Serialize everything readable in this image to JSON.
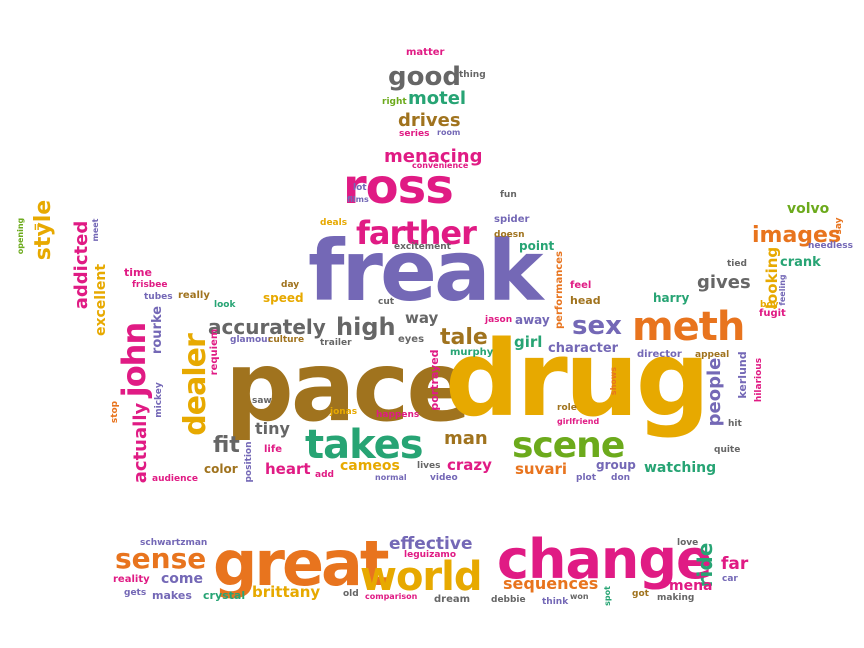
{
  "colors": {
    "pink": "#e01b84",
    "orange": "#e8741e",
    "gold": "#e7a900",
    "brown": "#a0731e",
    "violet": "#7468b6",
    "green": "#27a474",
    "lime": "#6caa1c",
    "gray": "#666666"
  },
  "words": [
    {
      "text": "pace",
      "color": "brown"
    },
    {
      "text": "drug",
      "color": "gold"
    },
    {
      "text": "freak",
      "color": "violet"
    },
    {
      "text": "great",
      "color": "orange"
    },
    {
      "text": "change",
      "color": "pink"
    },
    {
      "text": "world",
      "color": "gold"
    },
    {
      "text": "ross",
      "color": "pink"
    },
    {
      "text": "takes",
      "color": "green"
    },
    {
      "text": "meth",
      "color": "orange"
    },
    {
      "text": "scene",
      "color": "lime"
    },
    {
      "text": "dealer",
      "color": "gold"
    },
    {
      "text": "farther",
      "color": "pink"
    },
    {
      "text": "john",
      "color": "pink"
    },
    {
      "text": "sense",
      "color": "orange"
    },
    {
      "text": "good",
      "color": "gray"
    },
    {
      "text": "high",
      "color": "gray"
    },
    {
      "text": "sex",
      "color": "violet"
    },
    {
      "text": "accurately",
      "color": "gray"
    },
    {
      "text": "images",
      "color": "orange"
    },
    {
      "text": "style",
      "color": "gold"
    },
    {
      "text": "people",
      "color": "violet"
    },
    {
      "text": "addicted",
      "color": "pink"
    },
    {
      "text": "actually",
      "color": "pink"
    },
    {
      "text": "menacing",
      "color": "pink"
    },
    {
      "text": "motel",
      "color": "green"
    },
    {
      "text": "drives",
      "color": "brown"
    },
    {
      "text": "tale",
      "color": "brown"
    },
    {
      "text": "fit",
      "color": "gray"
    },
    {
      "text": "man",
      "color": "brown"
    },
    {
      "text": "ride",
      "color": "green"
    },
    {
      "text": "effective",
      "color": "violet"
    },
    {
      "text": "sequences",
      "color": "orange"
    },
    {
      "text": "gives",
      "color": "gray"
    },
    {
      "text": "looking",
      "color": "gold"
    },
    {
      "text": "brittany",
      "color": "gold"
    },
    {
      "text": "crazy",
      "color": "pink"
    },
    {
      "text": "tiny",
      "color": "gray"
    },
    {
      "text": "girl",
      "color": "green"
    },
    {
      "text": "come",
      "color": "violet"
    },
    {
      "text": "mena",
      "color": "pink"
    },
    {
      "text": "far",
      "color": "pink"
    },
    {
      "text": "volvo",
      "color": "lime"
    },
    {
      "text": "character",
      "color": "violet"
    },
    {
      "text": "excellent",
      "color": "gold"
    },
    {
      "text": "rourke",
      "color": "violet"
    },
    {
      "text": "heart",
      "color": "pink"
    },
    {
      "text": "cameos",
      "color": "gold"
    },
    {
      "text": "watching",
      "color": "green"
    },
    {
      "text": "suvari",
      "color": "orange"
    },
    {
      "text": "way",
      "color": "gray"
    },
    {
      "text": "makes",
      "color": "violet"
    },
    {
      "text": "crystal",
      "color": "green"
    },
    {
      "text": "crank",
      "color": "green"
    },
    {
      "text": "harry",
      "color": "green"
    },
    {
      "text": "speed",
      "color": "gold"
    },
    {
      "text": "color",
      "color": "brown"
    },
    {
      "text": "group",
      "color": "violet"
    },
    {
      "text": "away",
      "color": "violet"
    },
    {
      "text": "point",
      "color": "green"
    },
    {
      "text": "time",
      "color": "pink"
    },
    {
      "text": "really",
      "color": "brown"
    },
    {
      "text": "director",
      "color": "violet"
    },
    {
      "text": "requiem",
      "color": "pink"
    },
    {
      "text": "portrayed",
      "color": "pink"
    },
    {
      "text": "kerlund",
      "color": "violet"
    },
    {
      "text": "glamour",
      "color": "violet"
    },
    {
      "text": "culture",
      "color": "brown"
    },
    {
      "text": "trailer",
      "color": "gray"
    },
    {
      "text": "eyes",
      "color": "gray"
    },
    {
      "text": "murphy",
      "color": "green"
    },
    {
      "text": "jason",
      "color": "pink"
    },
    {
      "text": "performances",
      "color": "orange"
    },
    {
      "text": "feel",
      "color": "pink"
    },
    {
      "text": "head",
      "color": "brown"
    },
    {
      "text": "hilarious",
      "color": "pink"
    },
    {
      "text": "fugit",
      "color": "pink"
    },
    {
      "text": "boy",
      "color": "gold"
    },
    {
      "text": "feeling",
      "color": "violet"
    },
    {
      "text": "tied",
      "color": "gray"
    },
    {
      "text": "needless",
      "color": "violet"
    },
    {
      "text": "say",
      "color": "orange"
    },
    {
      "text": "appeal",
      "color": "brown"
    },
    {
      "text": "shows",
      "color": "orange"
    },
    {
      "text": "quite",
      "color": "gray"
    },
    {
      "text": "hit",
      "color": "gray"
    },
    {
      "text": "role",
      "color": "brown"
    },
    {
      "text": "girlfriend",
      "color": "pink"
    },
    {
      "text": "plot",
      "color": "violet"
    },
    {
      "text": "don",
      "color": "violet"
    },
    {
      "text": "happens",
      "color": "pink"
    },
    {
      "text": "jonas",
      "color": "gold"
    },
    {
      "text": "saw",
      "color": "gray"
    },
    {
      "text": "life",
      "color": "pink"
    },
    {
      "text": "position",
      "color": "violet"
    },
    {
      "text": "add",
      "color": "pink"
    },
    {
      "text": "normal",
      "color": "violet"
    },
    {
      "text": "lives",
      "color": "gray"
    },
    {
      "text": "video",
      "color": "violet"
    },
    {
      "text": "audience",
      "color": "pink"
    },
    {
      "text": "mickey",
      "color": "violet"
    },
    {
      "text": "stop",
      "color": "orange"
    },
    {
      "text": "frisbee",
      "color": "pink"
    },
    {
      "text": "tubes",
      "color": "violet"
    },
    {
      "text": "look",
      "color": "green"
    },
    {
      "text": "day",
      "color": "brown"
    },
    {
      "text": "cut",
      "color": "gray"
    },
    {
      "text": "excitement",
      "color": "gray"
    },
    {
      "text": "deals",
      "color": "gold"
    },
    {
      "text": "spider",
      "color": "violet"
    },
    {
      "text": "doesn",
      "color": "brown"
    },
    {
      "text": "lot",
      "color": "violet"
    },
    {
      "text": "films",
      "color": "violet"
    },
    {
      "text": "fun",
      "color": "gray"
    },
    {
      "text": "convenience",
      "color": "pink"
    },
    {
      "text": "series",
      "color": "pink"
    },
    {
      "text": "room",
      "color": "violet"
    },
    {
      "text": "right",
      "color": "lime"
    },
    {
      "text": "thing",
      "color": "gray"
    },
    {
      "text": "matter",
      "color": "pink"
    },
    {
      "text": "opening",
      "color": "lime"
    },
    {
      "text": "ll",
      "color": "gold"
    },
    {
      "text": "meet",
      "color": "violet"
    },
    {
      "text": "schwartzman",
      "color": "violet"
    },
    {
      "text": "reality",
      "color": "pink"
    },
    {
      "text": "gets",
      "color": "violet"
    },
    {
      "text": "old",
      "color": "gray"
    },
    {
      "text": "comparison",
      "color": "pink"
    },
    {
      "text": "dream",
      "color": "gray"
    },
    {
      "text": "debbie",
      "color": "gray"
    },
    {
      "text": "think",
      "color": "violet"
    },
    {
      "text": "won",
      "color": "gray"
    },
    {
      "text": "spot",
      "color": "green"
    },
    {
      "text": "got",
      "color": "brown"
    },
    {
      "text": "making",
      "color": "gray"
    },
    {
      "text": "love",
      "color": "gray"
    },
    {
      "text": "leguizamo",
      "color": "pink"
    },
    {
      "text": "car",
      "color": "violet"
    }
  ]
}
